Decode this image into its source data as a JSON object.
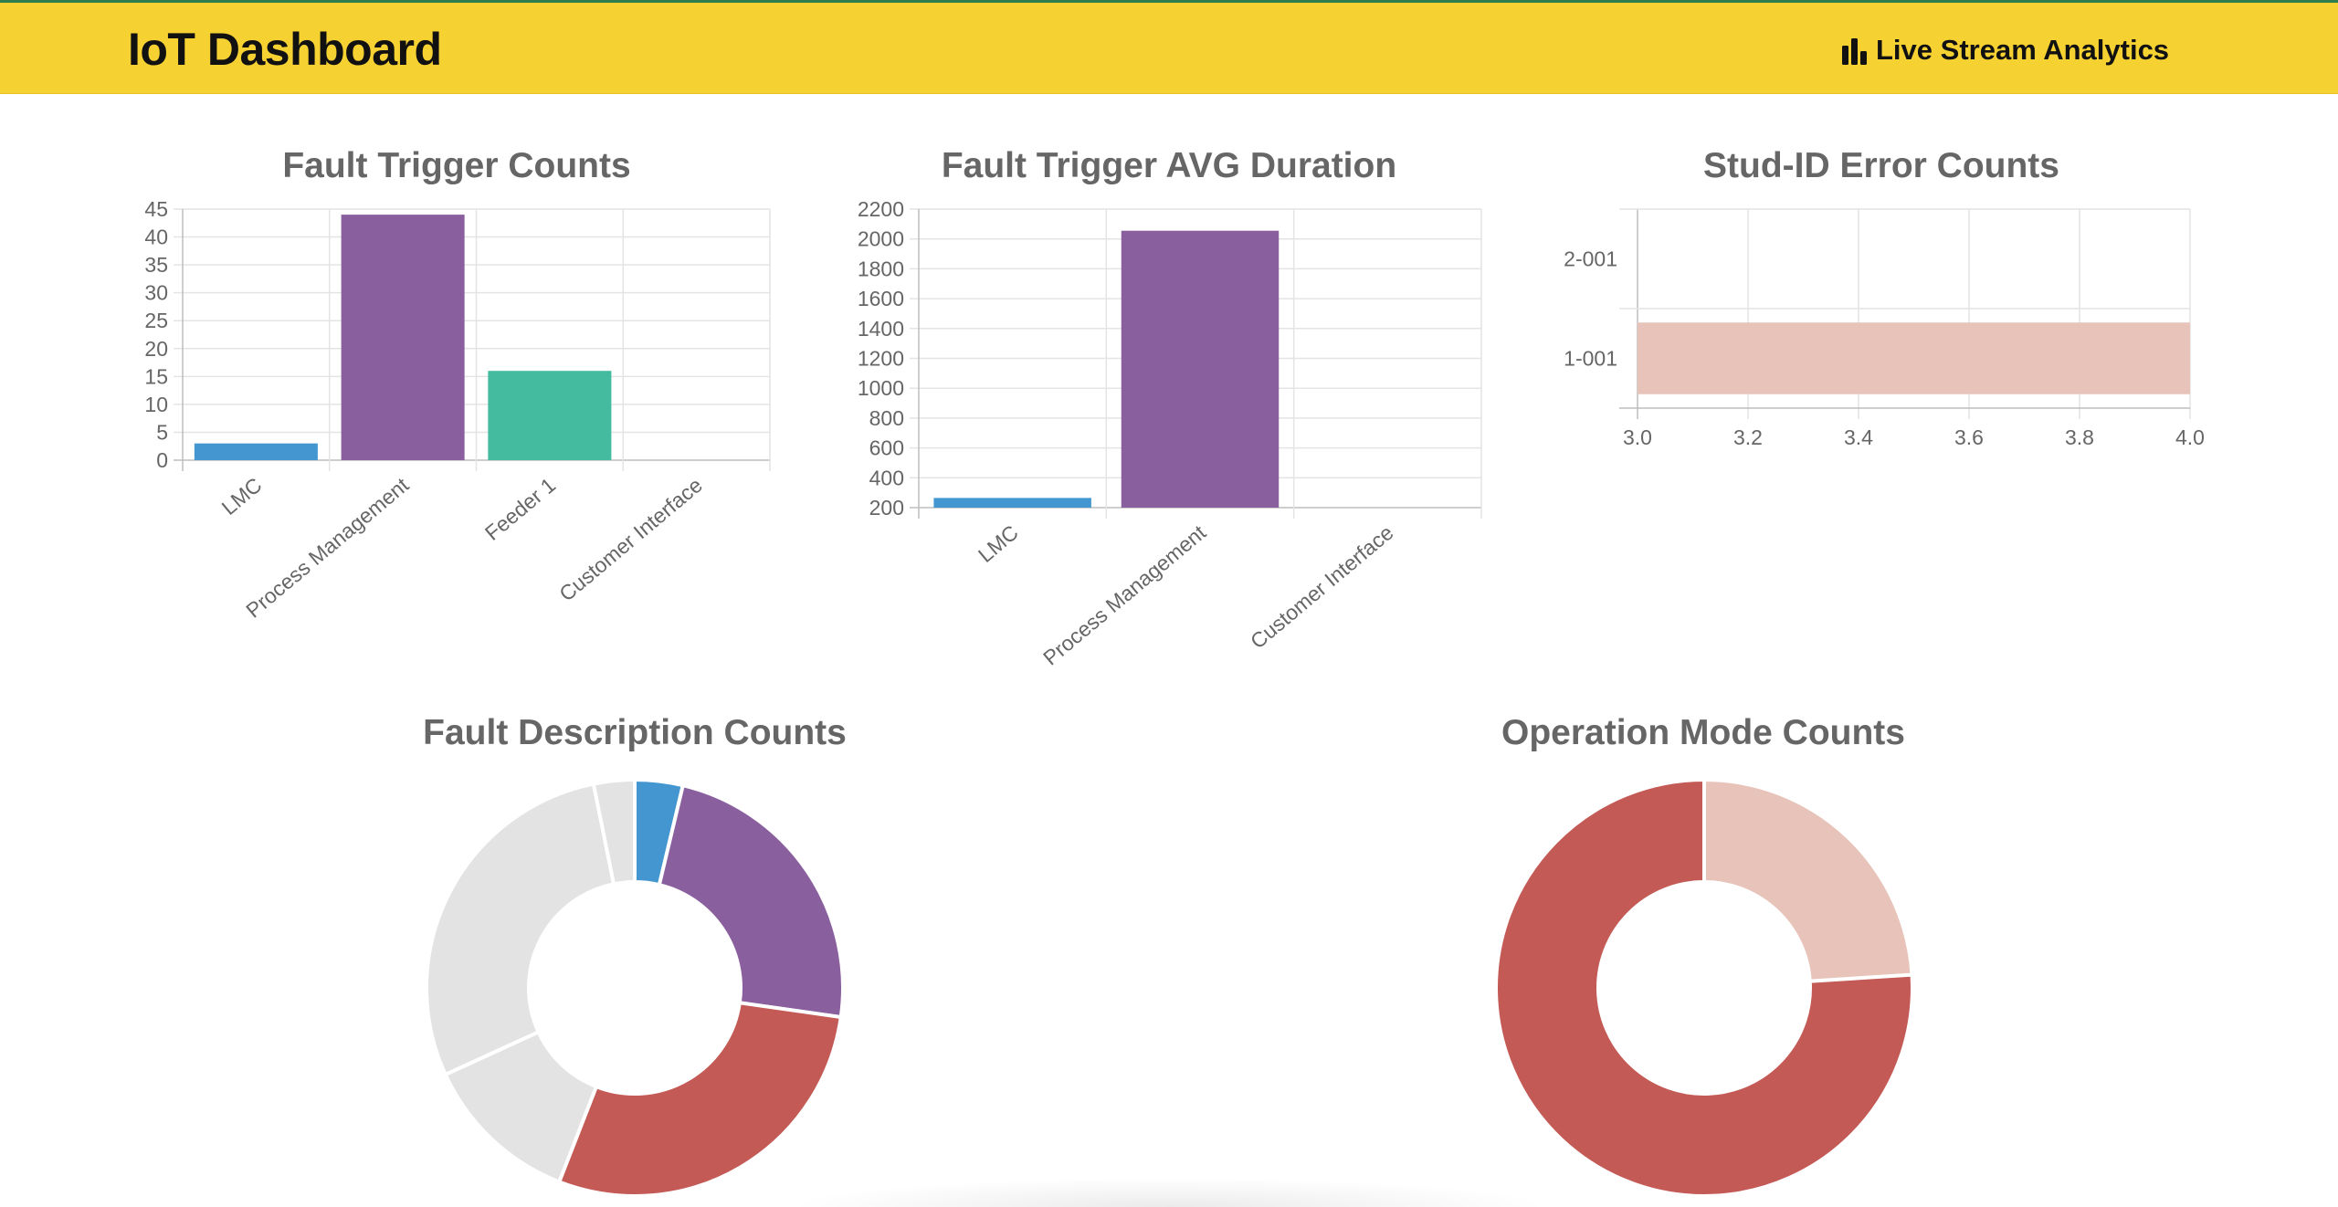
{
  "navbar": {
    "brand": "IoT Dashboard",
    "right_link": {
      "icon": "bar-chart-icon",
      "label": "Live Stream Analytics"
    }
  },
  "colors": {
    "navbar_bg": "#f6d132",
    "blue": "#4396d0",
    "purple": "#8a5f9e",
    "teal": "#44bb9f",
    "red": "#c45a55",
    "pink": "#e7c3b9",
    "grey": "#e3e3e3"
  },
  "chart_data": [
    {
      "id": "fault-trigger-counts",
      "type": "bar",
      "title": "Fault Trigger Counts",
      "categories": [
        "LMC",
        "Process Management",
        "Feeder 1",
        "Customer Interface"
      ],
      "values": [
        3,
        44,
        16,
        0
      ],
      "colors": [
        "#4396d0",
        "#8a5f9e",
        "#44bb9f",
        "#c45a55"
      ],
      "ylim": [
        0,
        45
      ],
      "yticks": [
        "45",
        "40",
        "35",
        "30",
        "25",
        "20",
        "15",
        "10",
        "5",
        "0"
      ],
      "grid": true,
      "legend": "none"
    },
    {
      "id": "fault-trigger-avg-duration",
      "type": "bar",
      "title": "Fault Trigger AVG Duration",
      "categories": [
        "LMC",
        "Process Management",
        "Customer Interface"
      ],
      "values": [
        265,
        2055,
        200
      ],
      "colors": [
        "#4396d0",
        "#8a5f9e",
        "#c45a55"
      ],
      "ylim": [
        200,
        2200
      ],
      "yticks": [
        "2200",
        "2000",
        "1800",
        "1600",
        "1400",
        "1200",
        "1000",
        "800",
        "600",
        "400",
        "200"
      ],
      "grid": true,
      "legend": "none"
    },
    {
      "id": "stud-id-error-counts",
      "type": "bar",
      "orientation": "horizontal",
      "title": "Stud-ID Error Counts",
      "categories": [
        "2-001",
        "1-001"
      ],
      "values": [
        null,
        4
      ],
      "colors": [
        "#e7c3b9",
        "#e7c3b9"
      ],
      "xlim": [
        3.0,
        4.0
      ],
      "xticks": [
        "3.0",
        "3.2",
        "3.4",
        "3.6",
        "3.8",
        "4.0"
      ],
      "grid": true,
      "legend": "none"
    },
    {
      "id": "fault-description-counts",
      "type": "pie",
      "donut": true,
      "title": "Fault Description Counts",
      "values": [
        3.4,
        21.5,
        26.2,
        11.2,
        26.2,
        2.9
      ],
      "colors": [
        "#4396d0",
        "#8a5f9e",
        "#c45a55",
        "#e3e3e3",
        "#e3e3e3",
        "#e3e3e3"
      ],
      "legend": "none"
    },
    {
      "id": "operation-mode-counts",
      "type": "pie",
      "donut": true,
      "title": "Operation Mode Counts",
      "values": [
        24,
        76
      ],
      "colors": [
        "#e7c3b9",
        "#c45a55"
      ],
      "legend": "none"
    }
  ]
}
